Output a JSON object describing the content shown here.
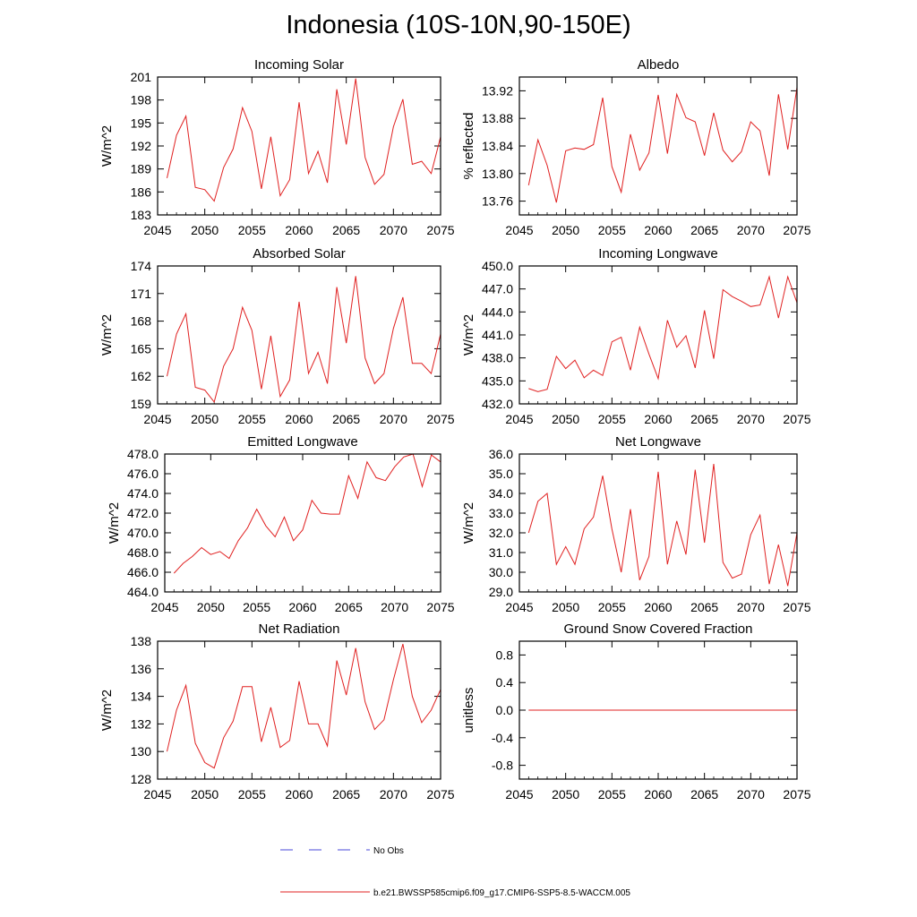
{
  "title": "Indonesia (10S-10N,90-150E)",
  "legend": {
    "items": [
      {
        "label": "No Obs",
        "color": "#4a4ad8",
        "style": "dashed"
      },
      {
        "label": "b.e21.BWSSP585cmip6.f09_g17.CMIP6-SSP5-8.5-WACCM.005",
        "color": "#e02020",
        "style": "solid"
      }
    ]
  },
  "chart_data": [
    {
      "type": "line",
      "title": "Incoming Solar",
      "ylabel": "W/m^2",
      "xlim": [
        2045,
        2075
      ],
      "ylim": [
        183,
        201
      ],
      "xticks": [
        2045,
        2050,
        2055,
        2060,
        2065,
        2070,
        2075
      ],
      "yticks": [
        183,
        186,
        189,
        192,
        195,
        198,
        201
      ],
      "ytick_labels": [
        "183",
        "186",
        "189",
        "192",
        "195",
        "198",
        "201"
      ],
      "x": [
        2046,
        2047,
        2048,
        2049,
        2050,
        2051,
        2052,
        2053,
        2054,
        2055,
        2056,
        2057,
        2058,
        2059,
        2060,
        2061,
        2062,
        2063,
        2064,
        2065,
        2066,
        2067,
        2068,
        2069,
        2070,
        2071,
        2072,
        2073,
        2074,
        2075
      ],
      "series": [
        {
          "name": "b.e21.BWSSP585cmip6.f09_g17.CMIP6-SSP5-8.5-WACCM.005",
          "color": "#e02020",
          "values": [
            187.8,
            193.4,
            195.9,
            186.6,
            186.3,
            184.8,
            189.2,
            191.6,
            197.0,
            193.9,
            186.4,
            193.2,
            185.5,
            187.6,
            197.7,
            188.4,
            191.3,
            187.2,
            199.4,
            192.2,
            200.8,
            190.5,
            187.0,
            188.3,
            194.5,
            198.1,
            189.6,
            190.0,
            188.4,
            193.2
          ]
        }
      ]
    },
    {
      "type": "line",
      "title": "Albedo",
      "ylabel": "% reflected",
      "xlim": [
        2045,
        2075
      ],
      "ylim": [
        13.74,
        13.94
      ],
      "xticks": [
        2045,
        2050,
        2055,
        2060,
        2065,
        2070,
        2075
      ],
      "yticks": [
        13.76,
        13.8,
        13.84,
        13.88,
        13.92
      ],
      "ytick_labels": [
        "13.76",
        "13.80",
        "13.84",
        "13.88",
        "13.92"
      ],
      "x": [
        2046,
        2047,
        2048,
        2049,
        2050,
        2051,
        2052,
        2053,
        2054,
        2055,
        2056,
        2057,
        2058,
        2059,
        2060,
        2061,
        2062,
        2063,
        2064,
        2065,
        2066,
        2067,
        2068,
        2069,
        2070,
        2071,
        2072,
        2073,
        2074,
        2075
      ],
      "series": [
        {
          "name": "b.e21.BWSSP585cmip6.f09_g17.CMIP6-SSP5-8.5-WACCM.005",
          "color": "#e02020",
          "values": [
            13.783,
            13.849,
            13.812,
            13.758,
            13.833,
            13.837,
            13.835,
            13.842,
            13.91,
            13.81,
            13.773,
            13.857,
            13.805,
            13.83,
            13.914,
            13.829,
            13.915,
            13.881,
            13.875,
            13.826,
            13.888,
            13.834,
            13.817,
            13.832,
            13.875,
            13.862,
            13.797,
            13.915,
            13.835,
            13.925
          ]
        }
      ]
    },
    {
      "type": "line",
      "title": "Absorbed Solar",
      "ylabel": "W/m^2",
      "xlim": [
        2045,
        2075
      ],
      "ylim": [
        159,
        174
      ],
      "xticks": [
        2045,
        2050,
        2055,
        2060,
        2065,
        2070,
        2075
      ],
      "yticks": [
        159,
        162,
        165,
        168,
        171,
        174
      ],
      "ytick_labels": [
        "159",
        "162",
        "165",
        "168",
        "171",
        "174"
      ],
      "x": [
        2046,
        2047,
        2048,
        2049,
        2050,
        2051,
        2052,
        2053,
        2054,
        2055,
        2056,
        2057,
        2058,
        2059,
        2060,
        2061,
        2062,
        2063,
        2064,
        2065,
        2066,
        2067,
        2068,
        2069,
        2070,
        2071,
        2072,
        2073,
        2074,
        2075
      ],
      "series": [
        {
          "name": "b.e21.BWSSP585cmip6.f09_g17.CMIP6-SSP5-8.5-WACCM.005",
          "color": "#e02020",
          "values": [
            162.0,
            166.6,
            168.8,
            160.8,
            160.5,
            159.2,
            163.1,
            165.0,
            169.5,
            167.0,
            160.6,
            166.4,
            159.8,
            161.6,
            170.1,
            162.3,
            164.6,
            161.2,
            171.7,
            165.6,
            172.9,
            164.0,
            161.2,
            162.3,
            167.2,
            170.6,
            163.4,
            163.4,
            162.3,
            166.6
          ]
        }
      ]
    },
    {
      "type": "line",
      "title": "Incoming Longwave",
      "ylabel": "W/m^2",
      "xlim": [
        2045,
        2075
      ],
      "ylim": [
        432.0,
        450.0
      ],
      "xticks": [
        2045,
        2050,
        2055,
        2060,
        2065,
        2070,
        2075
      ],
      "yticks": [
        432.0,
        435.0,
        438.0,
        441.0,
        444.0,
        447.0,
        450.0
      ],
      "ytick_labels": [
        "432.0",
        "435.0",
        "438.0",
        "441.0",
        "444.0",
        "447.0",
        "450.0"
      ],
      "x": [
        2046,
        2047,
        2048,
        2049,
        2050,
        2051,
        2052,
        2053,
        2054,
        2055,
        2056,
        2057,
        2058,
        2059,
        2060,
        2061,
        2062,
        2063,
        2064,
        2065,
        2066,
        2067,
        2068,
        2069,
        2070,
        2071,
        2072,
        2073,
        2074,
        2075
      ],
      "series": [
        {
          "name": "b.e21.BWSSP585cmip6.f09_g17.CMIP6-SSP5-8.5-WACCM.005",
          "color": "#e02020",
          "values": [
            434.0,
            433.6,
            433.9,
            438.2,
            436.6,
            437.7,
            435.4,
            436.4,
            435.7,
            440.1,
            440.7,
            436.4,
            442.0,
            438.5,
            435.3,
            442.9,
            439.4,
            440.9,
            436.7,
            444.2,
            437.9,
            446.9,
            446.0,
            445.4,
            444.7,
            444.9,
            448.6,
            443.2,
            448.6,
            445.2
          ]
        }
      ]
    },
    {
      "type": "line",
      "title": "Emitted Longwave",
      "ylabel": "W/m^2",
      "xlim": [
        2045,
        2075
      ],
      "ylim": [
        464.0,
        478.0
      ],
      "xticks": [
        2045,
        2050,
        2055,
        2060,
        2065,
        2070,
        2075
      ],
      "yticks": [
        464.0,
        466.0,
        468.0,
        470.0,
        472.0,
        474.0,
        476.0,
        478.0
      ],
      "ytick_labels": [
        "464.0",
        "466.0",
        "468.0",
        "470.0",
        "472.0",
        "474.0",
        "476.0",
        "478.0"
      ],
      "x": [
        2046,
        2047,
        2048,
        2049,
        2050,
        2051,
        2052,
        2053,
        2054,
        2055,
        2056,
        2057,
        2058,
        2059,
        2060,
        2061,
        2062,
        2063,
        2064,
        2065,
        2066,
        2067,
        2068,
        2069,
        2070,
        2071,
        2072,
        2073,
        2074,
        2075
      ],
      "series": [
        {
          "name": "b.e21.BWSSP585cmip6.f09_g17.CMIP6-SSP5-8.5-WACCM.005",
          "color": "#e02020",
          "values": [
            465.9,
            466.9,
            467.6,
            468.5,
            467.8,
            468.1,
            467.4,
            469.2,
            470.5,
            472.4,
            470.7,
            469.6,
            471.6,
            469.2,
            470.3,
            473.3,
            472.0,
            471.9,
            471.9,
            475.8,
            473.5,
            477.2,
            475.6,
            475.3,
            476.7,
            477.7,
            478.0,
            474.7,
            477.9,
            477.2
          ]
        }
      ]
    },
    {
      "type": "line",
      "title": "Net Longwave",
      "ylabel": "W/m^2",
      "xlim": [
        2045,
        2075
      ],
      "ylim": [
        29.0,
        36.0
      ],
      "xticks": [
        2045,
        2050,
        2055,
        2060,
        2065,
        2070,
        2075
      ],
      "yticks": [
        29.0,
        30.0,
        31.0,
        32.0,
        33.0,
        34.0,
        35.0,
        36.0
      ],
      "ytick_labels": [
        "29.0",
        "30.0",
        "31.0",
        "32.0",
        "33.0",
        "34.0",
        "35.0",
        "36.0"
      ],
      "x": [
        2046,
        2047,
        2048,
        2049,
        2050,
        2051,
        2052,
        2053,
        2054,
        2055,
        2056,
        2057,
        2058,
        2059,
        2060,
        2061,
        2062,
        2063,
        2064,
        2065,
        2066,
        2067,
        2068,
        2069,
        2070,
        2071,
        2072,
        2073,
        2074,
        2075
      ],
      "series": [
        {
          "name": "b.e21.BWSSP585cmip6.f09_g17.CMIP6-SSP5-8.5-WACCM.005",
          "color": "#e02020",
          "values": [
            32.0,
            33.6,
            34.0,
            30.4,
            31.3,
            30.4,
            32.2,
            32.8,
            34.9,
            32.2,
            30.0,
            33.2,
            29.6,
            30.8,
            35.1,
            30.4,
            32.6,
            30.9,
            35.2,
            31.5,
            35.5,
            30.5,
            29.7,
            29.9,
            31.9,
            32.9,
            29.4,
            31.4,
            29.3,
            32.0
          ]
        }
      ]
    },
    {
      "type": "line",
      "title": "Net Radiation",
      "ylabel": "W/m^2",
      "xlim": [
        2045,
        2075
      ],
      "ylim": [
        128,
        138
      ],
      "xticks": [
        2045,
        2050,
        2055,
        2060,
        2065,
        2070,
        2075
      ],
      "yticks": [
        128,
        130,
        132,
        134,
        136,
        138
      ],
      "ytick_labels": [
        "128",
        "130",
        "132",
        "134",
        "136",
        "138"
      ],
      "x": [
        2046,
        2047,
        2048,
        2049,
        2050,
        2051,
        2052,
        2053,
        2054,
        2055,
        2056,
        2057,
        2058,
        2059,
        2060,
        2061,
        2062,
        2063,
        2064,
        2065,
        2066,
        2067,
        2068,
        2069,
        2070,
        2071,
        2072,
        2073,
        2074,
        2075
      ],
      "series": [
        {
          "name": "b.e21.BWSSP585cmip6.f09_g17.CMIP6-SSP5-8.5-WACCM.005",
          "color": "#e02020",
          "values": [
            130.0,
            133.0,
            134.8,
            130.6,
            129.2,
            128.8,
            131.0,
            132.2,
            134.7,
            134.7,
            130.7,
            133.2,
            130.3,
            130.8,
            135.1,
            132.0,
            132.0,
            130.4,
            136.6,
            134.1,
            137.5,
            133.6,
            131.6,
            132.3,
            135.2,
            137.8,
            134.0,
            132.1,
            133.0,
            134.5
          ]
        }
      ]
    },
    {
      "type": "line",
      "title": "Ground Snow Covered Fraction",
      "ylabel": "unitless",
      "xlim": [
        2045,
        2075
      ],
      "ylim": [
        -1.0,
        1.0
      ],
      "xticks": [
        2045,
        2050,
        2055,
        2060,
        2065,
        2070,
        2075
      ],
      "yticks": [
        -0.8,
        -0.4,
        0.0,
        0.4,
        0.8
      ],
      "ytick_labels": [
        "-0.8",
        "-0.4",
        "0.0",
        "0.4",
        "0.8"
      ],
      "x": [
        2046,
        2047,
        2048,
        2049,
        2050,
        2051,
        2052,
        2053,
        2054,
        2055,
        2056,
        2057,
        2058,
        2059,
        2060,
        2061,
        2062,
        2063,
        2064,
        2065,
        2066,
        2067,
        2068,
        2069,
        2070,
        2071,
        2072,
        2073,
        2074,
        2075
      ],
      "series": [
        {
          "name": "b.e21.BWSSP585cmip6.f09_g17.CMIP6-SSP5-8.5-WACCM.005",
          "color": "#e02020",
          "values": [
            0.0,
            0.0,
            0.0,
            0.0,
            0.0,
            0.0,
            0.0,
            0.0,
            0.0,
            0.0,
            0.0,
            0.0,
            0.0,
            0.0,
            0.0,
            0.0,
            0.0,
            0.0,
            0.0,
            0.0,
            0.0,
            0.0,
            0.0,
            0.0,
            0.0,
            0.0,
            0.0,
            0.0,
            0.0,
            0.0
          ]
        }
      ]
    }
  ]
}
